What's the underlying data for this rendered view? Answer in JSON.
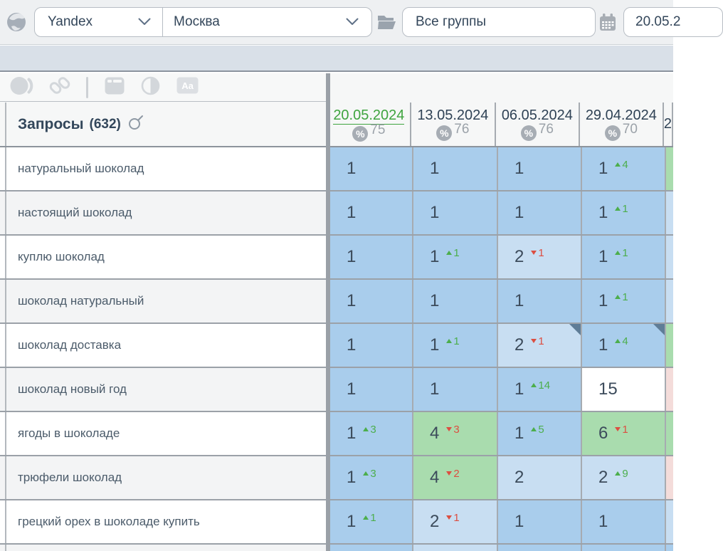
{
  "topbar": {
    "search_engine": "Yandex",
    "region": "Москва",
    "group_filter": "Все группы",
    "date_value": "20.05.2",
    "icons": [
      "globe-icon",
      "folder-icon",
      "calendar-icon",
      "chevron-down-icon"
    ]
  },
  "toolbar": {
    "icons": [
      "circle-crescent-icon",
      "link-icon",
      "window-icon",
      "contrast-icon",
      "text-case-icon"
    ]
  },
  "table": {
    "queries_title": "Запросы",
    "queries_count": "(632)",
    "columns": [
      {
        "date": "20.05.2024",
        "percent": "75",
        "current": true
      },
      {
        "date": "13.05.2024",
        "percent": "76"
      },
      {
        "date": "06.05.2024",
        "percent": "76"
      },
      {
        "date": "29.04.2024",
        "percent": "70"
      },
      {
        "date": "2",
        "percent": "",
        "partial": true
      }
    ],
    "rows": [
      {
        "keyword": "натуральный шоколад",
        "cells": [
          {
            "v": "1",
            "bg": "blue"
          },
          {
            "v": "1",
            "bg": "blue"
          },
          {
            "v": "1",
            "bg": "blue"
          },
          {
            "v": "1",
            "d": "4",
            "dir": "up",
            "bg": "blue"
          },
          {
            "bg": "green"
          }
        ]
      },
      {
        "keyword": "настоящий шоколад",
        "cells": [
          {
            "v": "1",
            "bg": "blue"
          },
          {
            "v": "1",
            "bg": "blue"
          },
          {
            "v": "1",
            "bg": "blue"
          },
          {
            "v": "1",
            "d": "1",
            "dir": "up",
            "bg": "blue"
          },
          {
            "bg": "lightblue"
          }
        ]
      },
      {
        "keyword": "куплю шоколад",
        "cells": [
          {
            "v": "1",
            "bg": "blue"
          },
          {
            "v": "1",
            "d": "1",
            "dir": "up",
            "bg": "blue"
          },
          {
            "v": "2",
            "d": "1",
            "dir": "down",
            "bg": "lightblue"
          },
          {
            "v": "1",
            "d": "1",
            "dir": "up",
            "bg": "blue"
          },
          {
            "bg": "lightblue"
          }
        ]
      },
      {
        "keyword": "шоколад натуральный",
        "cells": [
          {
            "v": "1",
            "bg": "blue"
          },
          {
            "v": "1",
            "bg": "blue"
          },
          {
            "v": "1",
            "bg": "blue"
          },
          {
            "v": "1",
            "d": "1",
            "dir": "up",
            "bg": "blue"
          },
          {
            "bg": "lightblue"
          }
        ]
      },
      {
        "keyword": "шоколад доставка",
        "cells": [
          {
            "v": "1",
            "bg": "blue"
          },
          {
            "v": "1",
            "d": "1",
            "dir": "up",
            "bg": "blue"
          },
          {
            "v": "2",
            "d": "1",
            "dir": "down",
            "bg": "lightblue",
            "corner": true
          },
          {
            "v": "1",
            "d": "4",
            "dir": "up",
            "bg": "blue",
            "corner": true
          },
          {
            "bg": "green"
          }
        ]
      },
      {
        "keyword": "шоколад новый год",
        "cells": [
          {
            "v": "1",
            "bg": "blue"
          },
          {
            "v": "1",
            "bg": "blue"
          },
          {
            "v": "1",
            "d": "14",
            "dir": "up",
            "bg": "blue"
          },
          {
            "v": "15",
            "bg": "white"
          },
          {
            "bg": "pink"
          }
        ]
      },
      {
        "keyword": "ягоды в шоколаде",
        "cells": [
          {
            "v": "1",
            "d": "3",
            "dir": "up",
            "bg": "blue"
          },
          {
            "v": "4",
            "d": "3",
            "dir": "down",
            "bg": "green"
          },
          {
            "v": "1",
            "d": "5",
            "dir": "up",
            "bg": "blue"
          },
          {
            "v": "6",
            "d": "1",
            "dir": "down",
            "bg": "green"
          },
          {
            "bg": "green"
          }
        ]
      },
      {
        "keyword": "трюфели шоколад",
        "cells": [
          {
            "v": "1",
            "d": "3",
            "dir": "up",
            "bg": "blue"
          },
          {
            "v": "4",
            "d": "2",
            "dir": "down",
            "bg": "green"
          },
          {
            "v": "2",
            "bg": "lightblue"
          },
          {
            "v": "2",
            "d": "9",
            "dir": "up",
            "bg": "lightblue"
          },
          {
            "bg": "pink"
          }
        ]
      },
      {
        "keyword": "грецкий орех в шоколаде купить",
        "cells": [
          {
            "v": "1",
            "d": "1",
            "dir": "up",
            "bg": "blue"
          },
          {
            "v": "2",
            "d": "1",
            "dir": "down",
            "bg": "lightblue"
          },
          {
            "v": "1",
            "bg": "blue"
          },
          {
            "v": "1",
            "bg": "blue"
          },
          {
            "bg": "lightblue"
          }
        ]
      },
      {
        "keyword": "",
        "partial": true,
        "cells": [
          {
            "bg": "blue"
          },
          {
            "bg": "lightblue"
          },
          {
            "bg": "blue"
          },
          {
            "bg": "blue"
          },
          {
            "bg": "blue"
          }
        ]
      }
    ]
  },
  "colors": {
    "top1_blue": "#a9cdec",
    "top2_lightblue": "#c8def2",
    "top10_green": "#a9dcae",
    "out_pink": "#f4dcda",
    "up_green": "#4cae4c",
    "down_red": "#dc4e41",
    "current_date_green": "#3fa43f",
    "corner_marker": "#5f7d97"
  }
}
